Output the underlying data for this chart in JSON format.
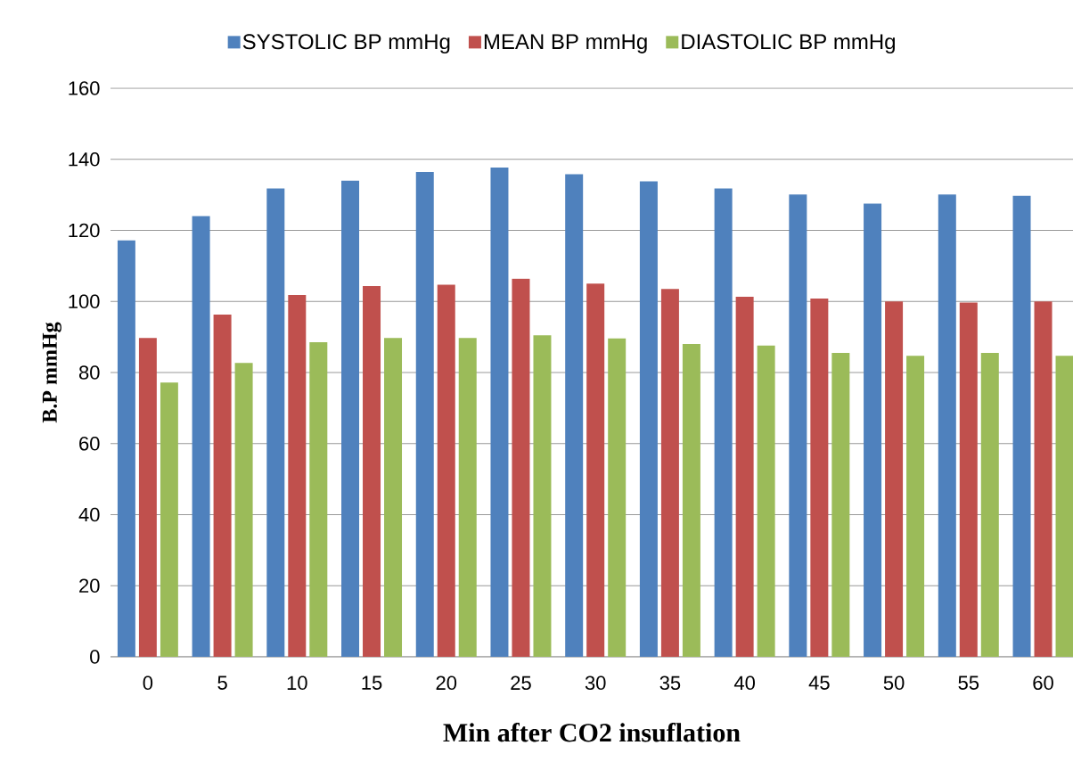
{
  "chart_data": {
    "type": "bar",
    "xlabel": "Min after CO2 insuflation",
    "ylabel": "B.P mmHg",
    "categories": [
      "0",
      "5",
      "10",
      "15",
      "20",
      "25",
      "30",
      "35",
      "40",
      "45",
      "50",
      "55",
      "60"
    ],
    "series": [
      {
        "name": "SYSTOLIC BP mmHg",
        "color": "#4f81bd",
        "values": [
          117.2,
          124,
          131.8,
          134,
          136.4,
          137.7,
          135.8,
          133.8,
          131.8,
          130.1,
          127.5,
          130.1,
          129.7
        ]
      },
      {
        "name": "MEAN BP mmHg",
        "color": "#c0504d",
        "values": [
          89.7,
          96.3,
          101.8,
          104.3,
          104.7,
          106.4,
          105,
          103.5,
          101.3,
          100.8,
          100,
          99.7,
          100
        ]
      },
      {
        "name": "DIASTOLIC BP mmHg",
        "color": "#9bbb59",
        "values": [
          77.2,
          82.7,
          88.5,
          89.7,
          89.7,
          90.5,
          89.6,
          88,
          87.6,
          85.5,
          84.7,
          85.5,
          84.7
        ]
      }
    ],
    "ylim": [
      0,
      160
    ],
    "yticks": [
      0,
      20,
      40,
      60,
      80,
      100,
      120,
      140,
      160
    ],
    "grid": "y",
    "legend": "top"
  }
}
